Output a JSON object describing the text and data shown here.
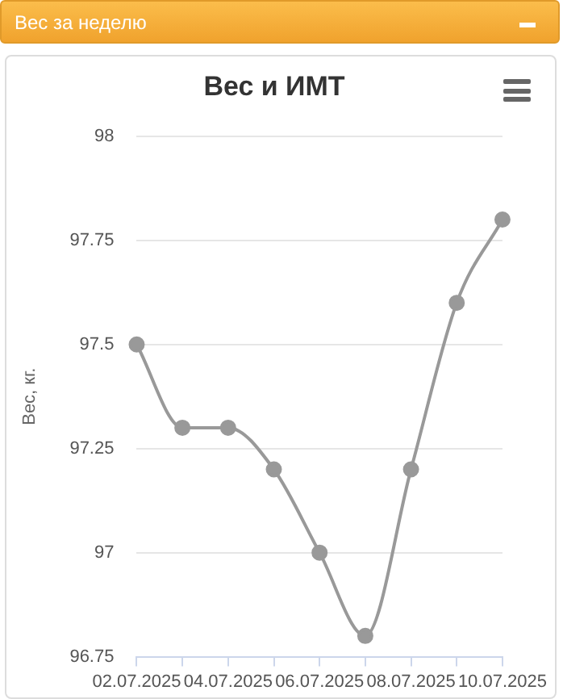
{
  "chart_data": {
    "type": "line",
    "title": "Вес и ИМТ",
    "subtitle": "Вес за неделю",
    "ylabel": "Вес, кг.",
    "categories": [
      "02.07.2025",
      null,
      "04.07.2025",
      null,
      "06.07.2025",
      null,
      "08.07.2025",
      null,
      "10.07.2025"
    ],
    "series": [
      {
        "color": "#999999",
        "values": [
          97.5,
          97.3,
          97.3,
          97.2,
          97.0,
          96.8,
          97.2,
          97.6,
          97.8
        ]
      }
    ],
    "ylim": [
      96.75,
      98
    ],
    "yticks": [
      96.75,
      97,
      97.25,
      97.5,
      97.75,
      98
    ],
    "grid": "y",
    "legend": false,
    "marker": "circle",
    "line_style": "solid"
  }
}
